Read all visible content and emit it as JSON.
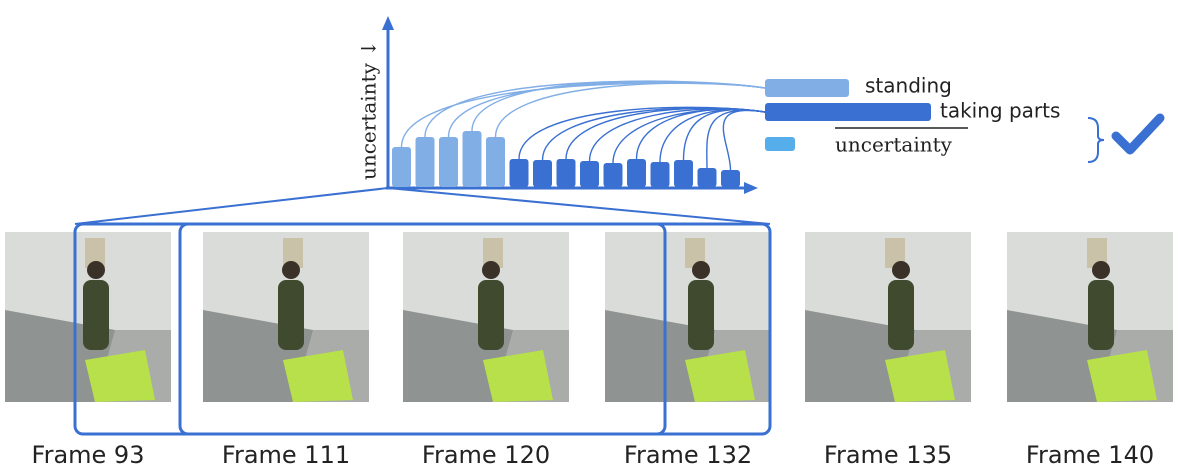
{
  "axis_label": "uncertainty ↓",
  "legend": [
    {
      "label": "standing",
      "color": "#82aee6"
    },
    {
      "label": "taking parts",
      "color": "#3a70d2"
    },
    {
      "label": "uncertainty",
      "color": "#55aee9"
    }
  ],
  "bars": {
    "standing": [
      40,
      50,
      50,
      56,
      50
    ],
    "taking_parts": [
      28,
      27,
      28,
      26,
      24,
      28,
      25,
      27,
      19,
      17
    ]
  },
  "frames": [
    "Frame 93",
    "Frame 111",
    "Frame 120",
    "Frame 132",
    "Frame 135",
    "Frame 140"
  ]
}
